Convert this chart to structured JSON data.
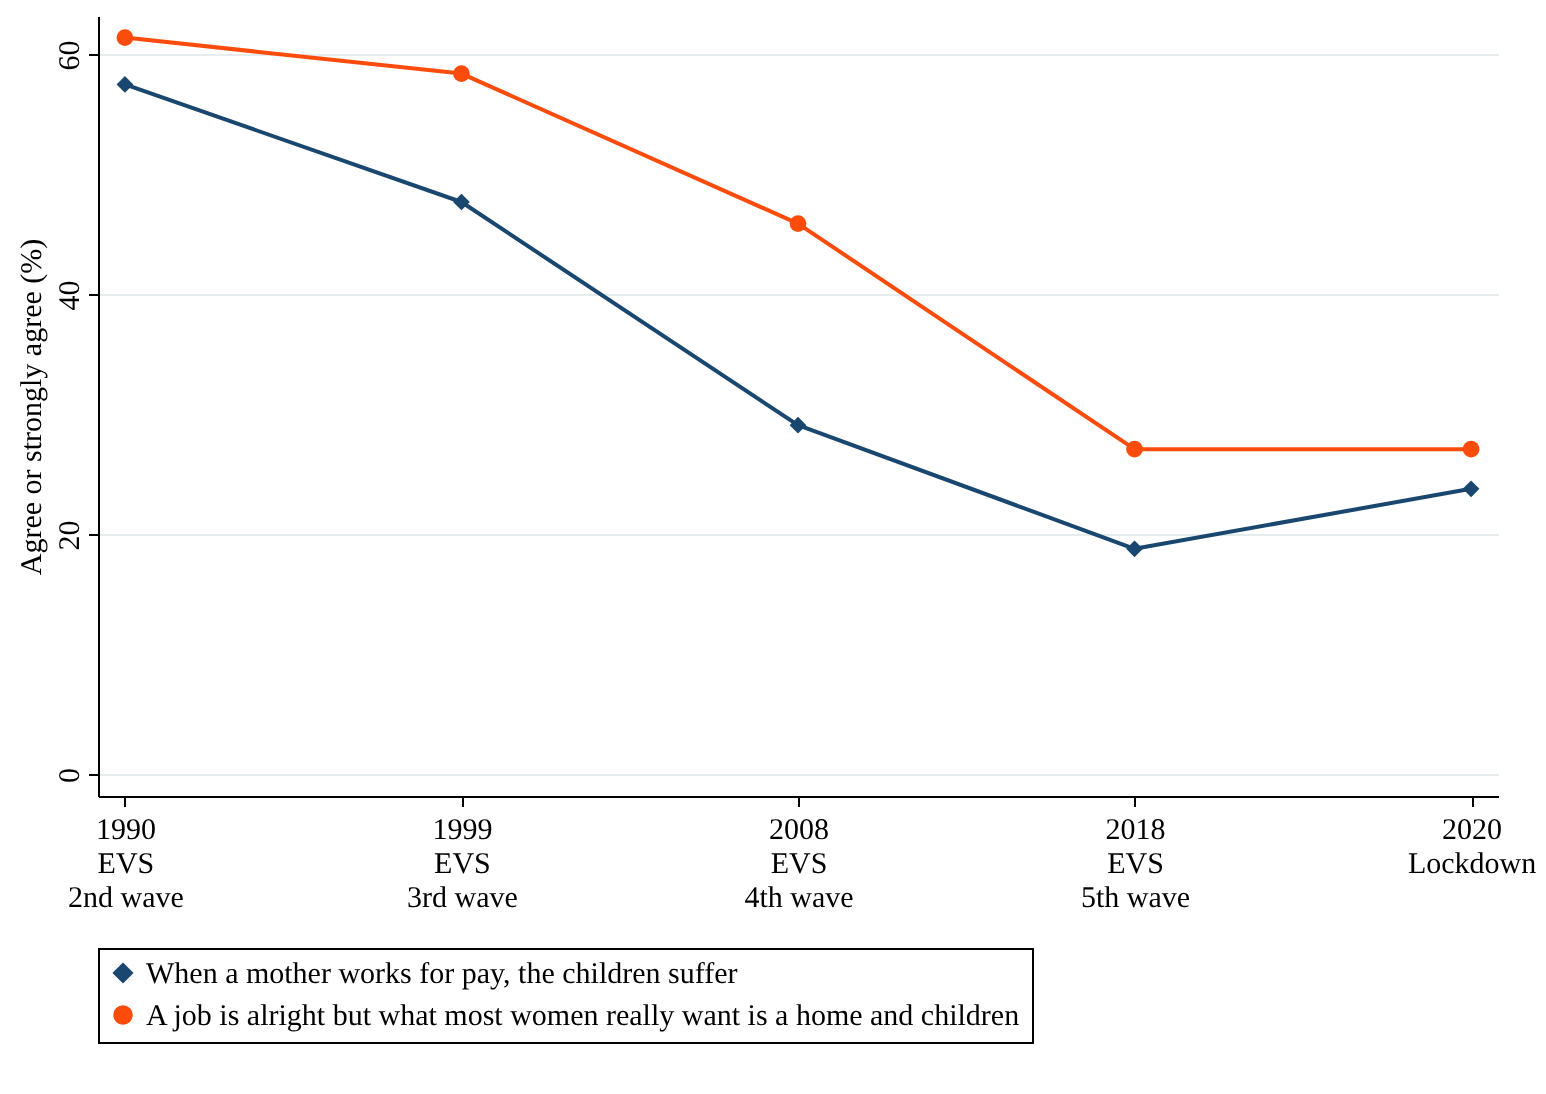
{
  "chart_data": {
    "type": "line",
    "ylabel": "Agree or strongly agree (%)",
    "categories": [
      "1990\nEVS\n2nd wave",
      "1999\nEVS\n3rd wave",
      "2008\nEVS\n4th wave",
      "2018\nEVS\n5th wave",
      "2020\nLockdown"
    ],
    "series": [
      {
        "name": "When a mother works for pay, the children suffer",
        "color": "#1a476f",
        "marker": "diamond",
        "values": [
          57.5,
          47.7,
          29.1,
          18.8,
          23.8
        ]
      },
      {
        "name": "A job is alright but what most women really want is a home and children",
        "color": "#fc4c0c",
        "marker": "circle",
        "values": [
          61.4,
          58.4,
          45.9,
          27.1,
          27.1
        ]
      }
    ],
    "ylim": [
      -1.8,
      63.2
    ],
    "yticks": [
      0,
      20,
      40,
      60
    ],
    "grid": "y",
    "legend": "bottom"
  }
}
